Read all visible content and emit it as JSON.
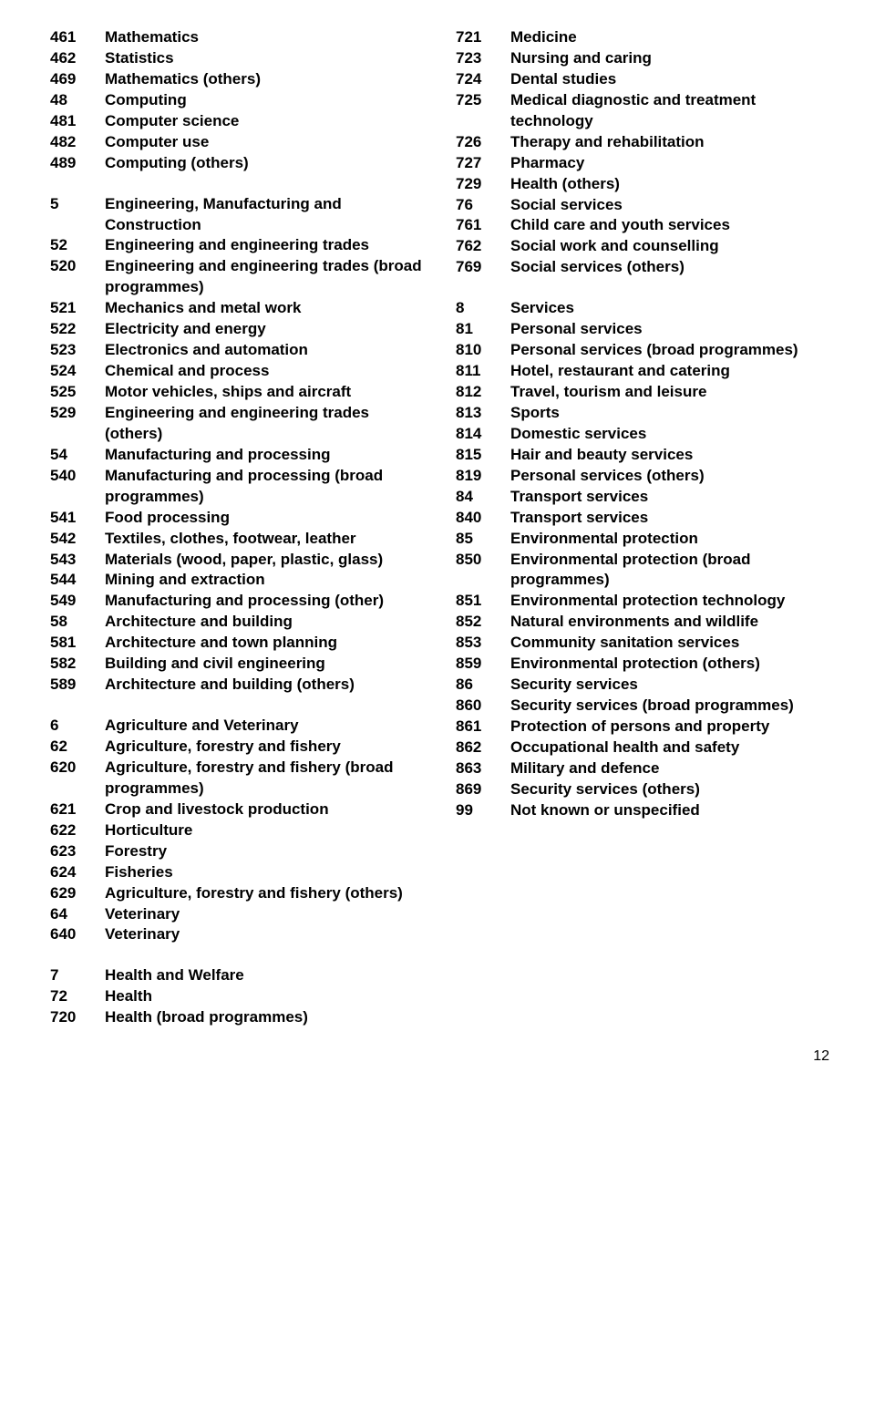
{
  "page_number": "12",
  "left_column": [
    {
      "code": "461",
      "label": "Mathematics"
    },
    {
      "code": "462",
      "label": "Statistics"
    },
    {
      "code": "469",
      "label": "Mathematics (others)"
    },
    {
      "code": "48",
      "label": "Computing"
    },
    {
      "code": "481",
      "label": "Computer science"
    },
    {
      "code": "482",
      "label": "Computer use"
    },
    {
      "code": "489",
      "label": "Computing (others)"
    },
    {
      "gap": true
    },
    {
      "code": "5",
      "label": "Engineering, Manufacturing and Construction"
    },
    {
      "code": "52",
      "label": "Engineering and engineering trades"
    },
    {
      "code": "520",
      "label": "Engineering and engineering trades (broad programmes)"
    },
    {
      "code": "521",
      "label": "Mechanics and metal work"
    },
    {
      "code": "522",
      "label": "Electricity and energy"
    },
    {
      "code": "523",
      "label": "Electronics and automation"
    },
    {
      "code": "524",
      "label": "Chemical and process"
    },
    {
      "code": "525",
      "label": "Motor vehicles, ships and aircraft"
    },
    {
      "code": "529",
      "label": "Engineering and engineering trades (others)"
    },
    {
      "code": "54",
      "label": "Manufacturing and processing"
    },
    {
      "code": "540",
      "label": "Manufacturing and processing (broad programmes)"
    },
    {
      "code": "541",
      "label": "Food processing"
    },
    {
      "code": "542",
      "label": "Textiles, clothes, footwear, leather"
    },
    {
      "code": "543",
      "label": "Materials (wood, paper, plastic, glass)"
    },
    {
      "code": "544",
      "label": "Mining and extraction"
    },
    {
      "code": "549",
      "label": "Manufacturing and processing (other)"
    },
    {
      "code": "58",
      "label": "Architecture and building"
    },
    {
      "code": "581",
      "label": "Architecture and town planning"
    },
    {
      "code": "582",
      "label": "Building and civil engineering"
    },
    {
      "code": "589",
      "label": "Architecture and building (others)"
    },
    {
      "gap": true
    },
    {
      "code": "6",
      "label": "Agriculture and Veterinary"
    },
    {
      "code": "62",
      "label": "Agriculture, forestry and fishery"
    },
    {
      "code": "620",
      "label": "Agriculture, forestry and fishery (broad programmes)"
    },
    {
      "code": "621",
      "label": "Crop and livestock production"
    },
    {
      "code": "622",
      "label": "Horticulture"
    },
    {
      "code": "623",
      "label": "Forestry"
    },
    {
      "code": "624",
      "label": "Fisheries"
    },
    {
      "code": "629",
      "label": "Agriculture, forestry and fishery (others)"
    },
    {
      "code": "64",
      "label": "Veterinary"
    },
    {
      "code": "640",
      "label": "Veterinary"
    },
    {
      "gap": true
    },
    {
      "code": "7",
      "label": "Health and Welfare"
    },
    {
      "code": "72",
      "label": "Health"
    },
    {
      "code": "720",
      "label": "Health (broad programmes)"
    }
  ],
  "right_column": [
    {
      "code": "721",
      "label": "Medicine"
    },
    {
      "code": "723",
      "label": "Nursing and caring"
    },
    {
      "code": "724",
      "label": "Dental studies"
    },
    {
      "code": "725",
      "label": "Medical diagnostic and treatment technology"
    },
    {
      "code": "726",
      "label": "Therapy and rehabilitation"
    },
    {
      "code": "727",
      "label": "Pharmacy"
    },
    {
      "code": "729",
      "label": "Health (others)"
    },
    {
      "code": "76",
      "label": "Social services"
    },
    {
      "code": "761",
      "label": "Child care and youth services"
    },
    {
      "code": "762",
      "label": "Social work and counselling"
    },
    {
      "code": "769",
      "label": "Social services (others)"
    },
    {
      "gap": true
    },
    {
      "code": "8",
      "label": "Services"
    },
    {
      "code": "81",
      "label": "Personal services"
    },
    {
      "code": "810",
      "label": "Personal services (broad programmes)"
    },
    {
      "code": "811",
      "label": "Hotel, restaurant and catering"
    },
    {
      "code": "812",
      "label": "Travel, tourism and leisure"
    },
    {
      "code": "813",
      "label": "Sports"
    },
    {
      "code": "814",
      "label": "Domestic services"
    },
    {
      "code": "815",
      "label": "Hair and beauty services"
    },
    {
      "code": "819",
      "label": "Personal services (others)"
    },
    {
      "code": "84",
      "label": "Transport services"
    },
    {
      "code": "840",
      "label": "Transport services"
    },
    {
      "code": "85",
      "label": "Environmental protection"
    },
    {
      "code": "850",
      "label": "Environmental protection (broad programmes)"
    },
    {
      "code": "851",
      "label": "Environmental protection technology"
    },
    {
      "code": "852",
      "label": "Natural environments and wildlife"
    },
    {
      "code": "853",
      "label": "Community sanitation services"
    },
    {
      "code": "859",
      "label": "Environmental protection (others)"
    },
    {
      "code": "86",
      "label": "Security services"
    },
    {
      "code": "860",
      "label": "Security services (broad programmes)"
    },
    {
      "code": "861",
      "label": "Protection of persons and property"
    },
    {
      "code": "862",
      "label": "Occupational health and safety"
    },
    {
      "code": "863",
      "label": "Military and defence"
    },
    {
      "code": "869",
      "label": "Security services (others)"
    },
    {
      "code": "99",
      "label": "Not known or unspecified"
    }
  ]
}
